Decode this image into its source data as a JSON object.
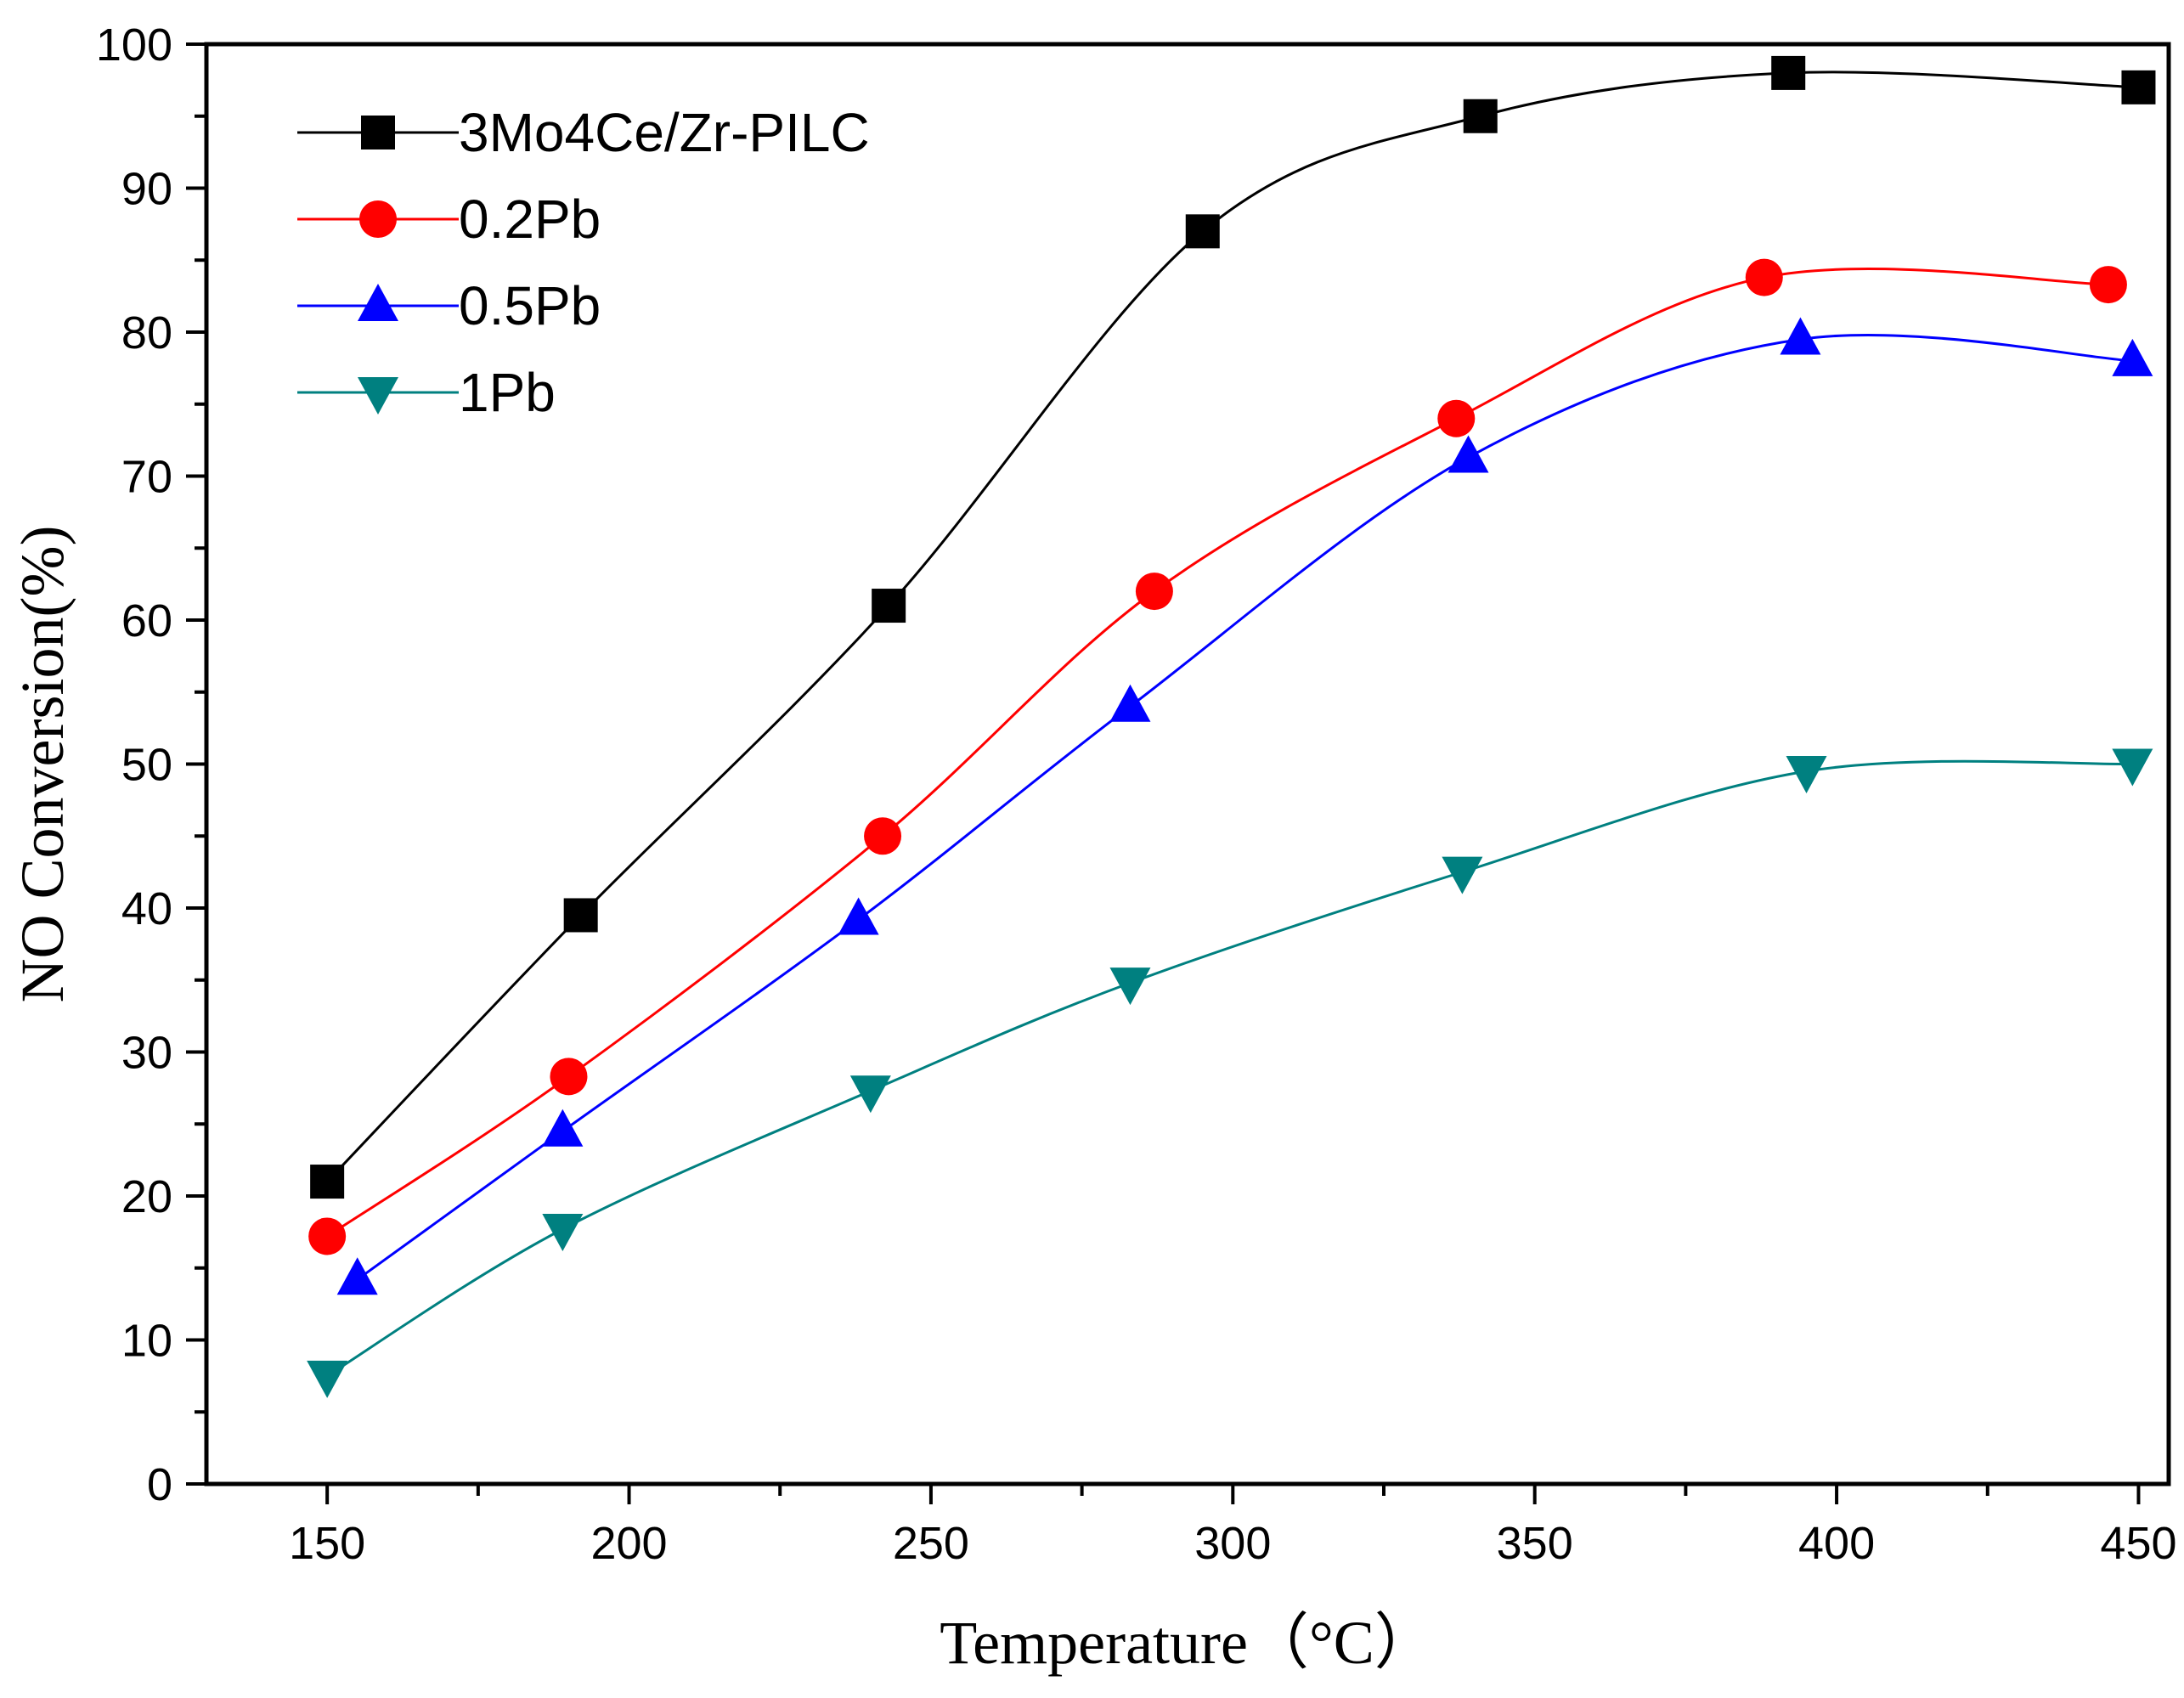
{
  "chart_data": {
    "type": "line",
    "title": "",
    "xlabel": "Temperature（°C）",
    "ylabel": "NO Conversion(%)",
    "xlim": [
      130,
      455
    ],
    "ylim": [
      0,
      100
    ],
    "x_ticks": [
      150,
      200,
      250,
      300,
      350,
      400,
      450
    ],
    "x_tick_labels": [
      "150",
      "200",
      "250",
      "300",
      "350",
      "400",
      "450"
    ],
    "y_ticks": [
      0,
      10,
      20,
      30,
      40,
      50,
      60,
      70,
      80,
      90,
      100
    ],
    "y_tick_labels": [
      "0",
      "10",
      "20",
      "30",
      "40",
      "50",
      "60",
      "70",
      "80",
      "90",
      "100"
    ],
    "legend_position": "top-left",
    "series": [
      {
        "name": "3Mo4Ce/Zr-PILC",
        "color": "#000000",
        "marker": "square",
        "x": [
          150,
          192,
          243,
          295,
          341,
          392,
          450
        ],
        "y": [
          21,
          39.5,
          61,
          87,
          95,
          98,
          97
        ]
      },
      {
        "name": "0.2Pb",
        "color": "#ff0000",
        "marker": "circle",
        "x": [
          150,
          190,
          242,
          287,
          337,
          388,
          445
        ],
        "y": [
          17.2,
          28.3,
          45,
          62,
          74,
          83.8,
          83.3
        ]
      },
      {
        "name": "0.5Pb",
        "color": "#0000ff",
        "marker": "triangle-up",
        "x": [
          155,
          189,
          238,
          283,
          339,
          394,
          449
        ],
        "y": [
          14.2,
          24.5,
          39.2,
          54,
          71.3,
          79.5,
          78
        ]
      },
      {
        "name": "1Pb",
        "color": "#008080",
        "marker": "triangle-down",
        "x": [
          150,
          189,
          240,
          283,
          338,
          395,
          449
        ],
        "y": [
          7.5,
          17.7,
          27.3,
          34.8,
          42.5,
          49.5,
          50
        ]
      }
    ]
  }
}
